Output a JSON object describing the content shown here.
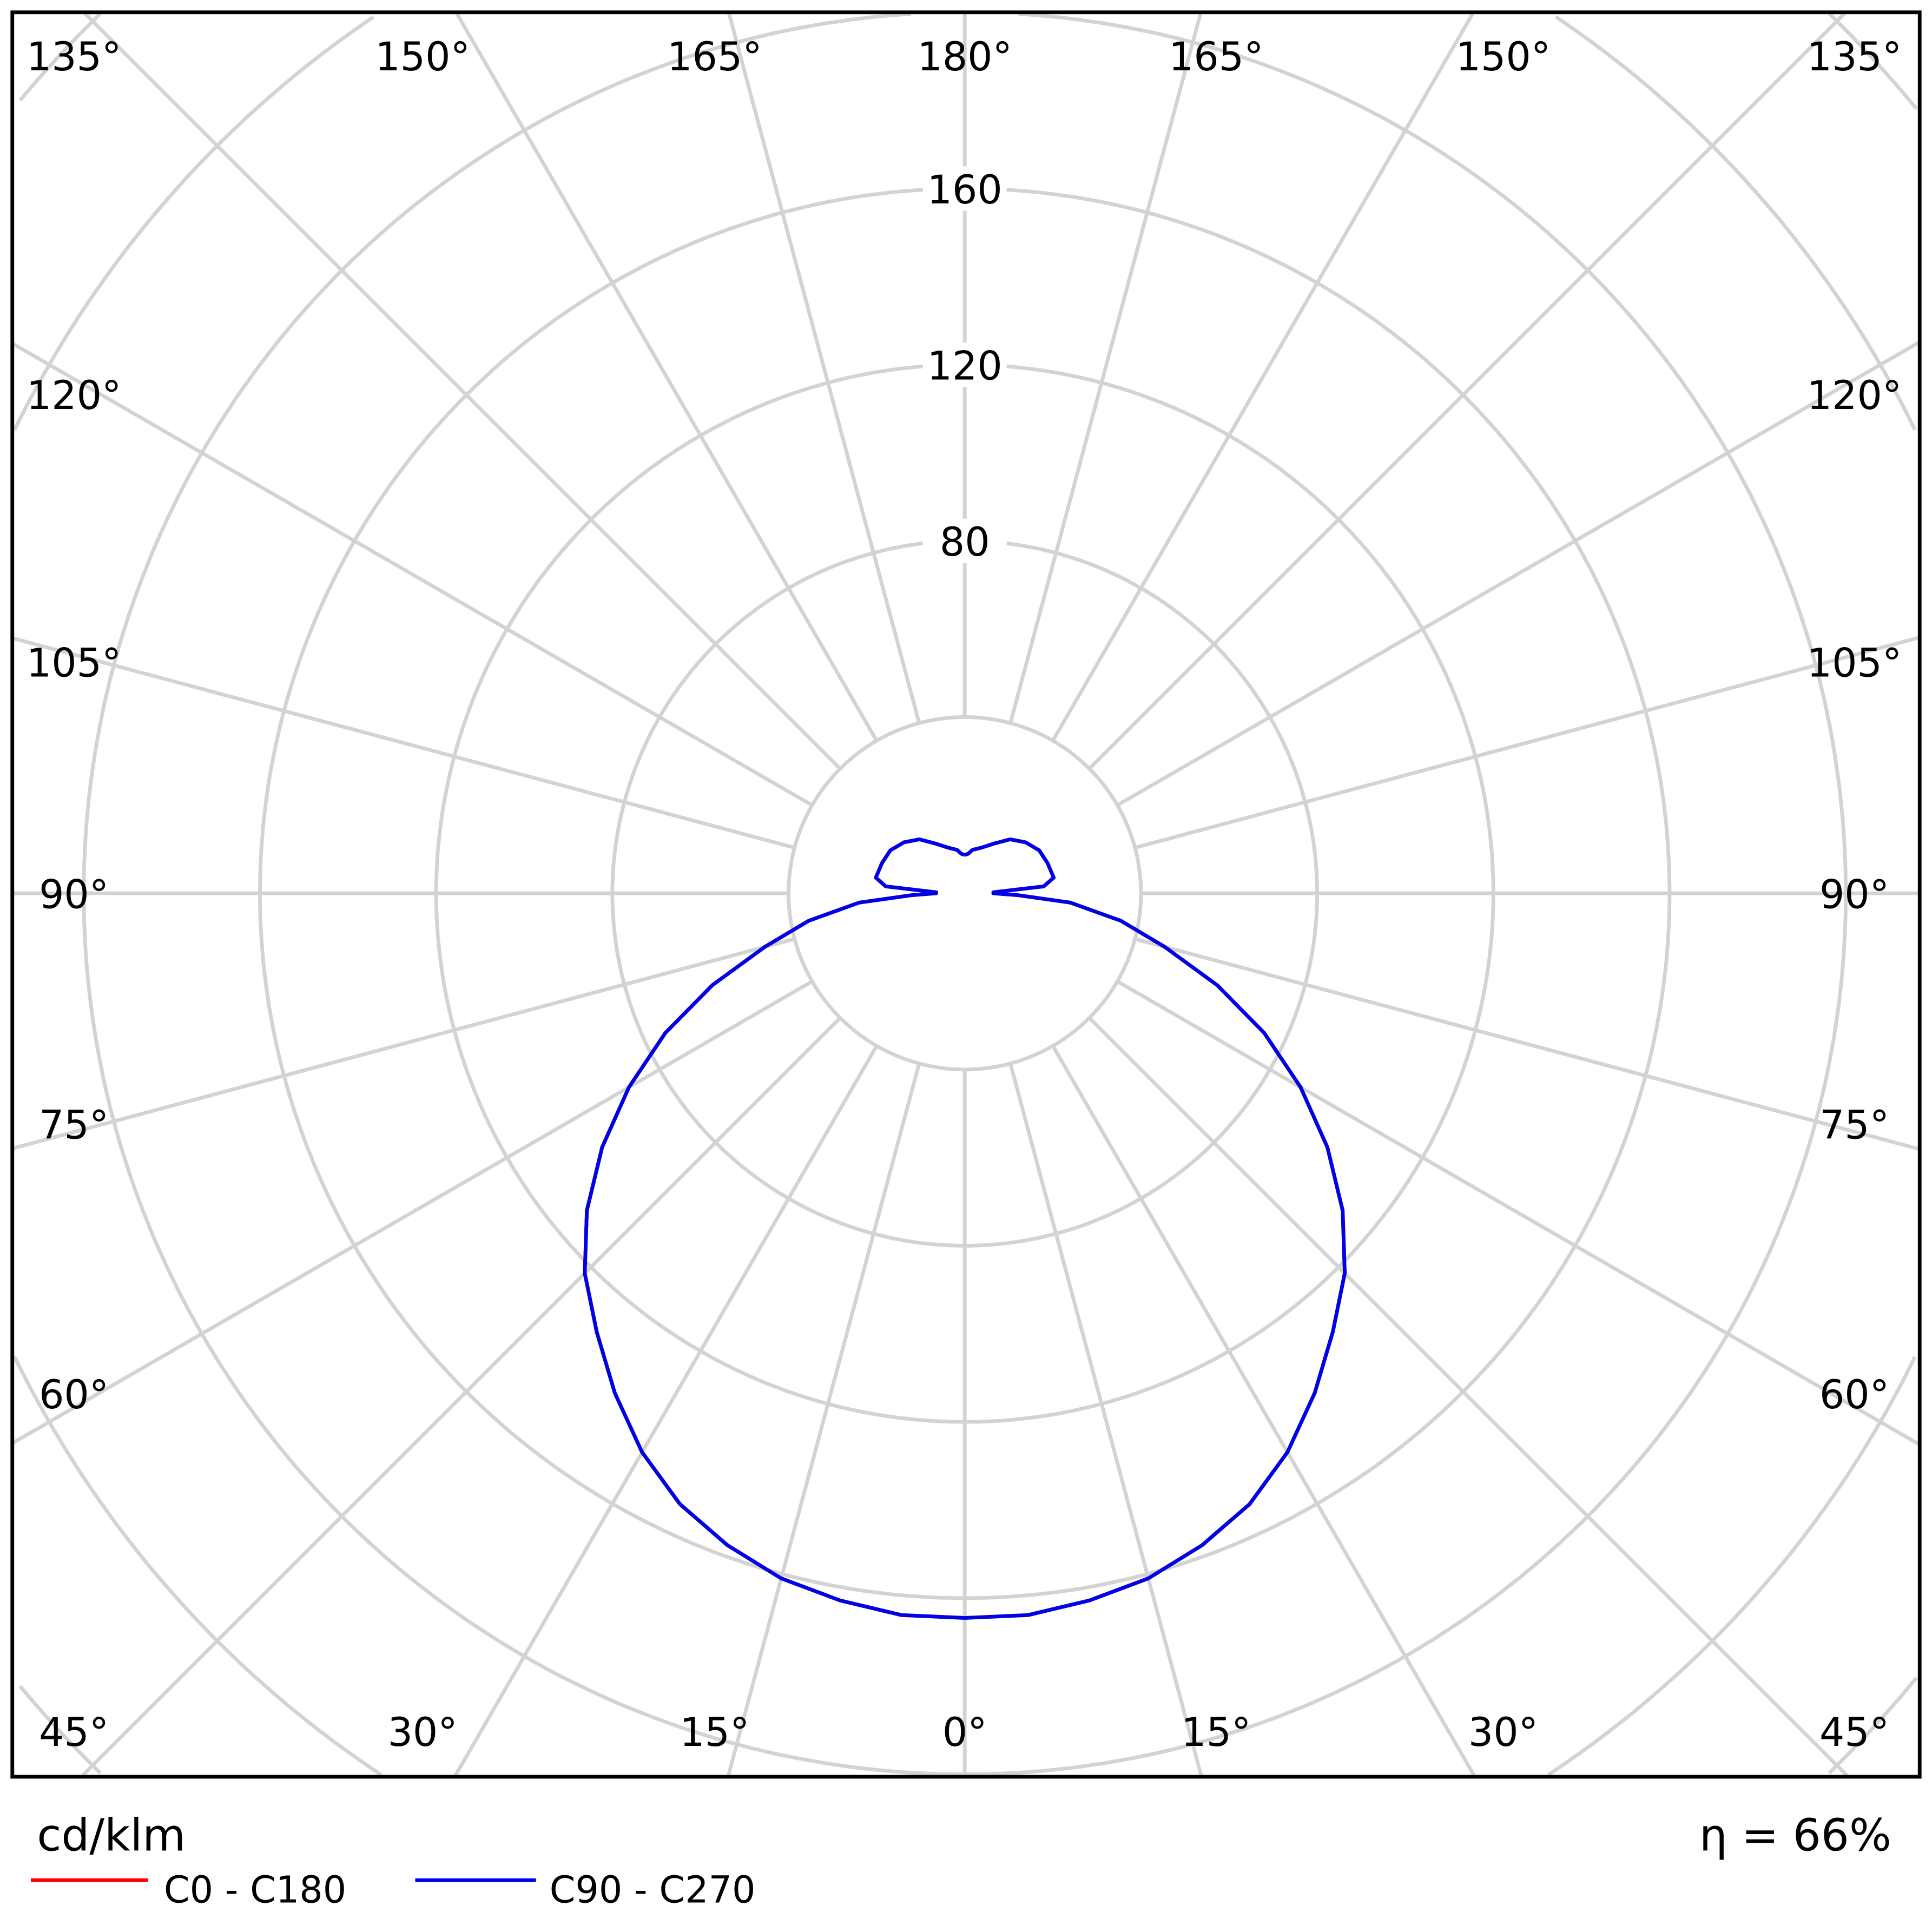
{
  "chart_data": {
    "type": "polar",
    "unit_label": "cd/klm",
    "efficiency_label": "η = 66%",
    "radial_ticks": [
      80,
      120,
      160
    ],
    "radial_grid_step": 40,
    "angle_labels_top": [
      "135°",
      "150°",
      "165°",
      "180°",
      "165°",
      "150°",
      "135°"
    ],
    "angle_labels_left": [
      "120°",
      "105°",
      "90°",
      "75°",
      "60°"
    ],
    "angle_labels_right": [
      "120°",
      "105°",
      "90°",
      "75°",
      "60°"
    ],
    "angle_labels_bottom": [
      "45°",
      "30°",
      "15°",
      "0°",
      "15°",
      "30°",
      "45°"
    ],
    "grid": true,
    "gamma": [
      0,
      5,
      10,
      15,
      20,
      25,
      30,
      35,
      40,
      45,
      50,
      55,
      60,
      65,
      70,
      75,
      80,
      85,
      88,
      90,
      92,
      95,
      100,
      110,
      120,
      130,
      140,
      150,
      160,
      170,
      175,
      180
    ],
    "series": [
      {
        "name": "C0 - C180",
        "color": "#ff0000",
        "values": [
          164.5,
          164.5,
          163,
          161,
          157.5,
          153,
          146.5,
          138.5,
          130,
          122,
          112,
          100.5,
          88,
          75,
          61,
          47,
          36,
          24,
          12,
          6.5,
          6.5,
          18,
          20.5,
          20,
          19.5,
          18,
          16,
          13,
          11,
          10,
          9,
          8.7
        ]
      },
      {
        "name": "C90 - C270",
        "color": "#0000e6",
        "values": [
          164.5,
          164.5,
          163,
          161,
          157.5,
          153,
          146.5,
          138.5,
          130,
          122,
          112,
          100.5,
          88,
          75,
          61,
          47,
          36,
          24,
          12,
          6.5,
          6.5,
          18,
          20.5,
          20,
          19.5,
          18,
          16,
          13,
          11,
          10,
          9,
          8.7
        ]
      }
    ]
  }
}
